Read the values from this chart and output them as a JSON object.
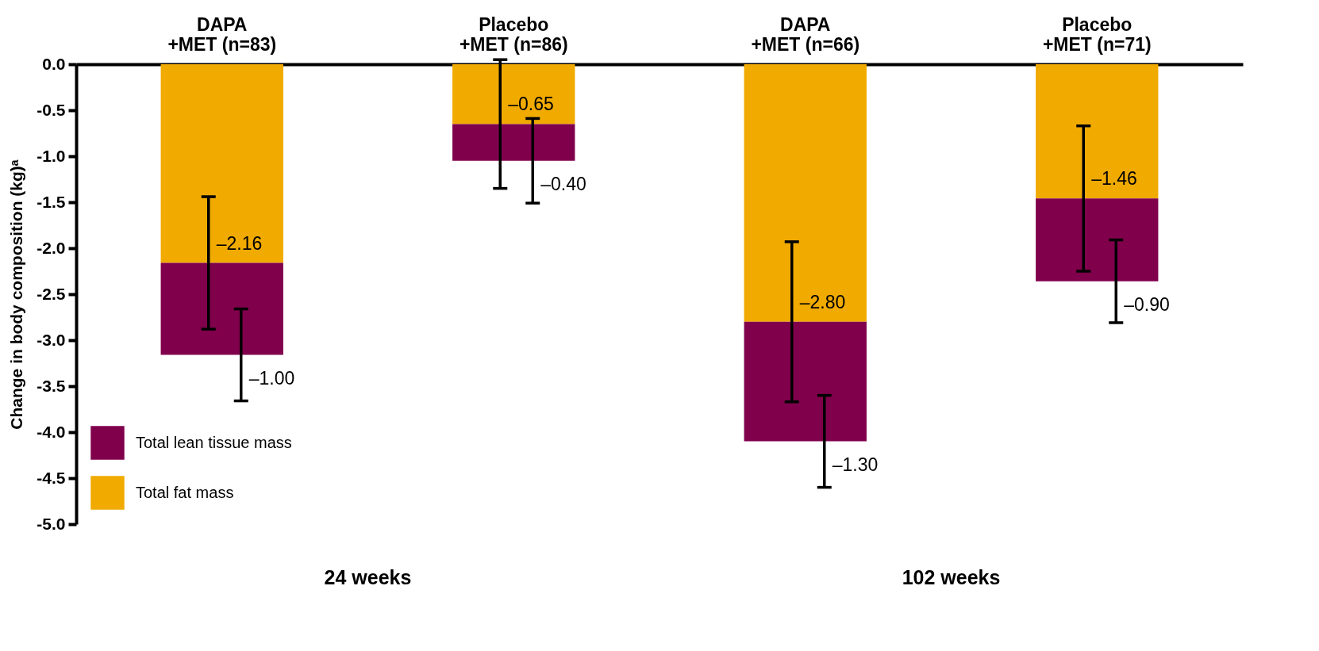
{
  "chart_data": {
    "type": "bar",
    "stacked": true,
    "ylabel": "Change in body composition (kg)ᵃ",
    "categories": [
      "DAPA +MET (n=83)",
      "Placebo +MET (n=86)",
      "DAPA +MET (n=66)",
      "Placebo +MET (n=71)"
    ],
    "series": [
      {
        "name": "Total fat mass",
        "color": "#f0aa00",
        "values": [
          -2.16,
          -0.65,
          -2.8,
          -1.46
        ],
        "errors": [
          0.72,
          0.7,
          0.87,
          0.79
        ],
        "value_labels": [
          "–2.16",
          "–0.65",
          "–2.80",
          "–1.46"
        ]
      },
      {
        "name": "Total lean tissue mass",
        "color": "#80004c",
        "values": [
          -1.0,
          -0.4,
          -1.3,
          -0.9
        ],
        "errors": [
          0.5,
          0.46,
          0.5,
          0.45
        ],
        "value_labels": [
          "–1.00",
          "–0.40",
          "–1.30",
          "–0.90"
        ]
      }
    ],
    "ylim": [
      -5,
      0
    ],
    "yticks": [
      {
        "value": -5,
        "label": "-5.0"
      },
      {
        "value": -4.5,
        "label": "-4.5"
      },
      {
        "value": -4,
        "label": "-4.0"
      },
      {
        "value": -3.5,
        "label": "-3.5"
      },
      {
        "value": -3,
        "label": "-3.0"
      },
      {
        "value": -2.5,
        "label": "-2.5"
      },
      {
        "value": -2,
        "label": "-2.0"
      },
      {
        "value": -1.5,
        "label": "-1.5"
      },
      {
        "value": -1,
        "label": "-1.0"
      },
      {
        "value": -0.5,
        "label": "-0.5"
      },
      {
        "value": 0,
        "label": "0.0"
      }
    ],
    "annotations": [
      "24 weeks",
      "102 weeks"
    ],
    "legend": "bottom left",
    "grid": false
  }
}
